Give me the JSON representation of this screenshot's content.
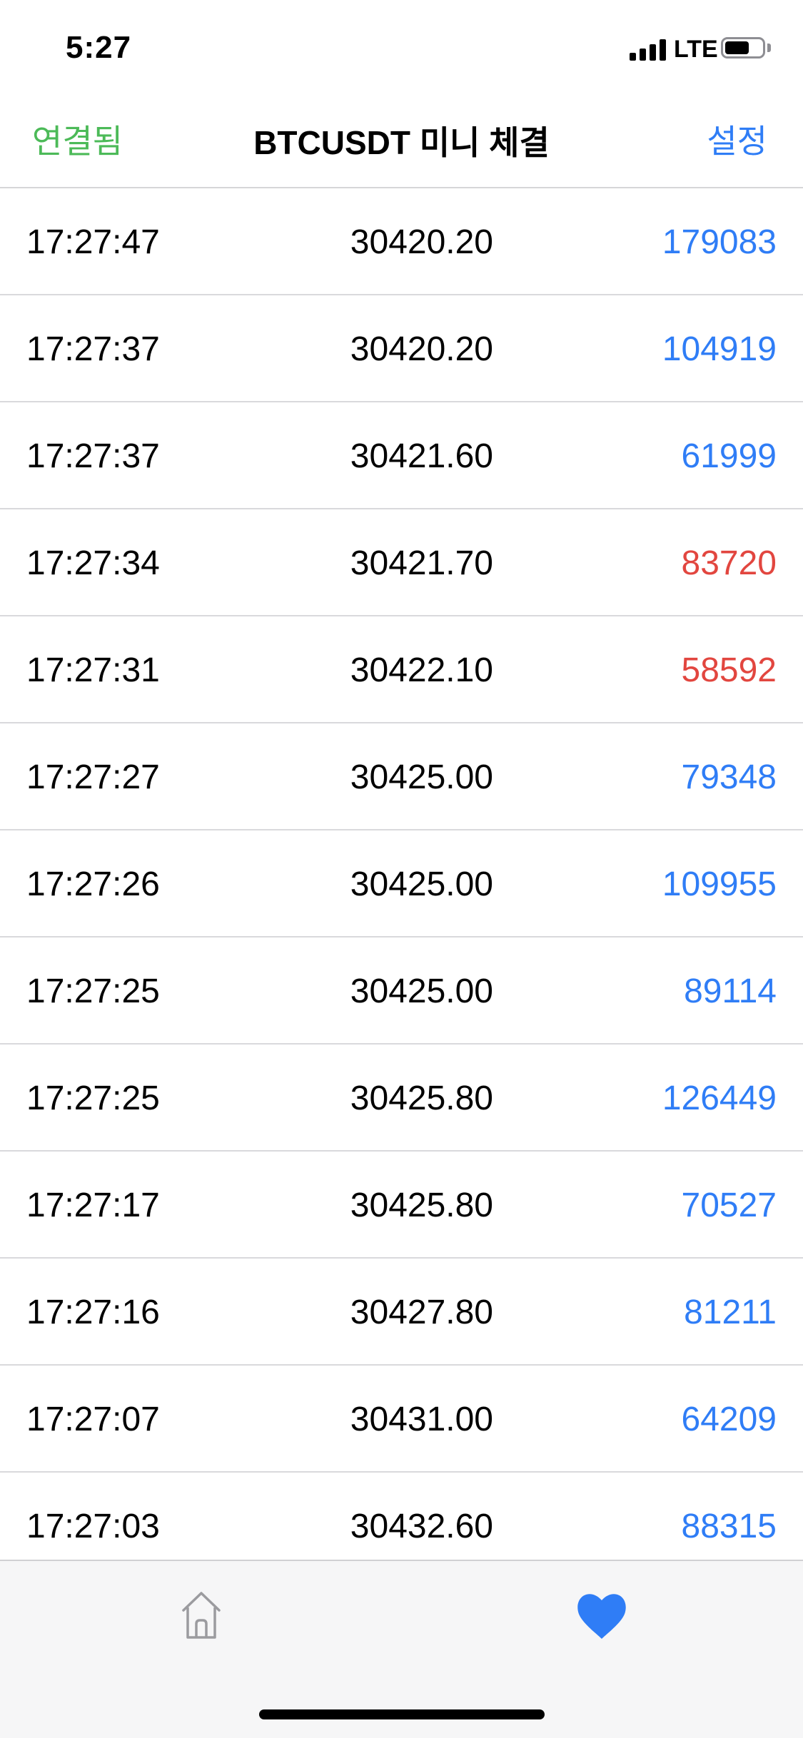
{
  "status_bar": {
    "time": "5:27",
    "network": "LTE",
    "battery_level": 0.65
  },
  "nav": {
    "left_label": "연결됨",
    "title": "BTCUSDT 미니 체결",
    "right_label": "설정"
  },
  "colors": {
    "buy": "#2f7df6",
    "sell": "#e2463f",
    "connected": "#4cba58",
    "accent": "#2f7df6",
    "inactive_icon": "#9b9b9f"
  },
  "trades": [
    {
      "time": "17:27:47",
      "price": "30420.20",
      "qty": "179083",
      "side": "buy"
    },
    {
      "time": "17:27:37",
      "price": "30420.20",
      "qty": "104919",
      "side": "buy"
    },
    {
      "time": "17:27:37",
      "price": "30421.60",
      "qty": "61999",
      "side": "buy"
    },
    {
      "time": "17:27:34",
      "price": "30421.70",
      "qty": "83720",
      "side": "sell"
    },
    {
      "time": "17:27:31",
      "price": "30422.10",
      "qty": "58592",
      "side": "sell"
    },
    {
      "time": "17:27:27",
      "price": "30425.00",
      "qty": "79348",
      "side": "buy"
    },
    {
      "time": "17:27:26",
      "price": "30425.00",
      "qty": "109955",
      "side": "buy"
    },
    {
      "time": "17:27:25",
      "price": "30425.00",
      "qty": "89114",
      "side": "buy"
    },
    {
      "time": "17:27:25",
      "price": "30425.80",
      "qty": "126449",
      "side": "buy"
    },
    {
      "time": "17:27:17",
      "price": "30425.80",
      "qty": "70527",
      "side": "buy"
    },
    {
      "time": "17:27:16",
      "price": "30427.80",
      "qty": "81211",
      "side": "buy"
    },
    {
      "time": "17:27:07",
      "price": "30431.00",
      "qty": "64209",
      "side": "buy"
    },
    {
      "time": "17:27:03",
      "price": "30432.60",
      "qty": "88315",
      "side": "buy"
    }
  ],
  "tabs": [
    {
      "icon": "home-icon",
      "active": false
    },
    {
      "icon": "heart-icon",
      "active": true
    }
  ]
}
